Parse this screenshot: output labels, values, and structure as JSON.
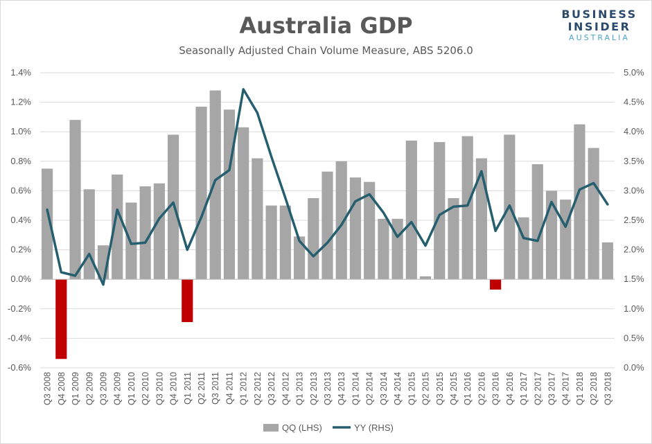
{
  "brand": {
    "line1": "BUSINESS",
    "line2": "INSIDER",
    "line3": "AUSTRALIA"
  },
  "colors": {
    "bar": "#a6a6a6",
    "bar_negative": "#c00000",
    "line": "#255e6e",
    "grid": "#d9d9d9",
    "text": "#595959"
  },
  "chart_data": {
    "type": "bar",
    "title": "Australia GDP",
    "subtitle": "Seasonally Adjusted Chain Volume Measure, ABS 5206.0",
    "categories": [
      "Q3 2008",
      "Q4 2008",
      "Q1 2009",
      "Q2 2009",
      "Q3 2009",
      "Q4 2009",
      "Q1 2010",
      "Q2 2010",
      "Q3 2010",
      "Q4 2010",
      "Q1 2011",
      "Q2 2011",
      "Q3 2011",
      "Q4 2011",
      "Q1 2012",
      "Q2 2012",
      "Q3 2012",
      "Q4 2012",
      "Q1 2013",
      "Q2 2013",
      "Q3 2013",
      "Q4 2013",
      "Q1 2014",
      "Q2 2014",
      "Q3 2014",
      "Q4 2014",
      "Q1 2015",
      "Q2 2015",
      "Q3 2015",
      "Q4 2015",
      "Q1 2016",
      "Q2 2016",
      "Q3 2016",
      "Q4 2016",
      "Q1 2017",
      "Q2 2017",
      "Q3 2017",
      "Q4 2017",
      "Q1 2018",
      "Q2 2018",
      "Q3 2018"
    ],
    "series": [
      {
        "name": "QQ (LHS)",
        "type": "bar",
        "axis": "left",
        "values": [
          0.75,
          -0.54,
          1.08,
          0.61,
          0.23,
          0.71,
          0.52,
          0.63,
          0.65,
          0.98,
          -0.29,
          1.17,
          1.28,
          1.15,
          1.03,
          0.82,
          0.5,
          0.5,
          0.29,
          0.55,
          0.73,
          0.8,
          0.69,
          0.66,
          0.41,
          0.41,
          0.94,
          0.02,
          0.93,
          0.55,
          0.97,
          0.82,
          -0.07,
          0.98,
          0.42,
          0.78,
          0.6,
          0.54,
          1.05,
          0.89,
          0.25
        ]
      },
      {
        "name": "YY (RHS)",
        "type": "line",
        "axis": "right",
        "values": [
          2.68,
          1.62,
          1.56,
          1.93,
          1.41,
          2.68,
          2.1,
          2.12,
          2.53,
          2.8,
          2.0,
          2.55,
          3.18,
          3.35,
          4.72,
          4.32,
          3.58,
          2.88,
          2.15,
          1.89,
          2.12,
          2.42,
          2.82,
          2.94,
          2.63,
          2.22,
          2.47,
          2.07,
          2.59,
          2.73,
          2.75,
          3.33,
          2.32,
          2.75,
          2.2,
          2.15,
          2.81,
          2.39,
          3.02,
          3.13,
          2.77
        ]
      }
    ],
    "y_left": {
      "min": -0.6,
      "max": 1.4,
      "step": 0.2,
      "ticks": [
        "1.4%",
        "1.2%",
        "1.0%",
        "0.8%",
        "0.6%",
        "0.4%",
        "0.2%",
        "0.0%",
        "-0.2%",
        "-0.4%",
        "-0.6%"
      ]
    },
    "y_right": {
      "min": 0.0,
      "max": 5.0,
      "step": 0.5,
      "ticks": [
        "5.0%",
        "4.5%",
        "4.0%",
        "3.5%",
        "3.0%",
        "2.5%",
        "2.0%",
        "1.5%",
        "1.0%",
        "0.5%",
        "0.0%"
      ]
    },
    "legend": [
      {
        "label": "QQ (LHS)",
        "kind": "bar"
      },
      {
        "label": "YY (RHS)",
        "kind": "line"
      }
    ],
    "legend_position": "bottom",
    "grid": true
  }
}
